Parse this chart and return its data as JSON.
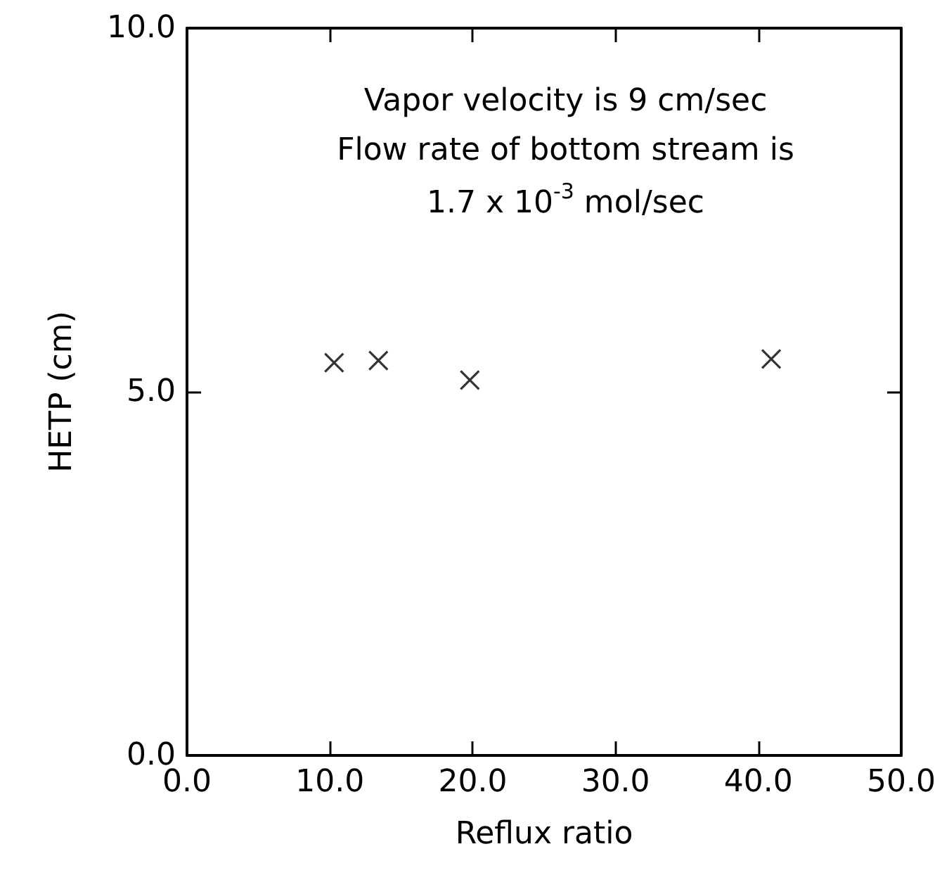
{
  "chart_data": {
    "type": "scatter",
    "xlabel": "Reflux ratio",
    "ylabel": "HETP (cm)",
    "annotations": [
      "Vapor velocity is 9 cm/sec",
      "Flow rate of bottom stream is",
      "1.7 x 10$^{-3}$ mol/sec"
    ],
    "x": [
      10.3,
      13.4,
      19.8,
      40.9
    ],
    "values": [
      5.4,
      5.43,
      5.16,
      5.45
    ],
    "color": "#000000",
    "marker": "cross",
    "xlim": [
      0,
      50
    ],
    "xticks": [
      {
        "value": 0,
        "label": "0.0"
      },
      {
        "value": 10,
        "label": "10.0"
      },
      {
        "value": 20,
        "label": "20.0"
      },
      {
        "value": 30,
        "label": "30.0"
      },
      {
        "value": 40,
        "label": "40.0"
      },
      {
        "value": 50,
        "label": "50.0"
      }
    ],
    "ylim": [
      0,
      10
    ],
    "yticks": [
      {
        "value": 0,
        "label": "0.0"
      },
      {
        "value": 5,
        "label": "5.0"
      },
      {
        "value": 10,
        "label": "10.0"
      }
    ],
    "grid": false
  }
}
